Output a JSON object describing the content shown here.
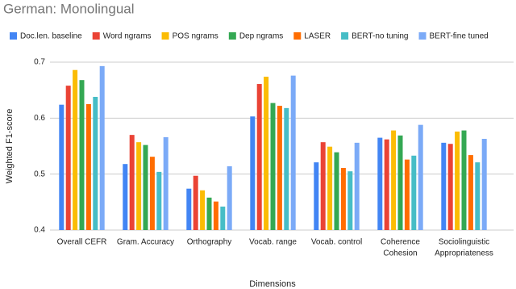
{
  "chart_data": {
    "type": "bar",
    "title": "German: Monolingual",
    "x_label": "Dimensions",
    "y_label": "Weighted F1-score",
    "categories": [
      [
        "Overall CEFR"
      ],
      [
        "Gram. Accuracy"
      ],
      [
        "Orthography"
      ],
      [
        "Vocab. range"
      ],
      [
        "Vocab. control"
      ],
      [
        "Coherence",
        "Cohesion"
      ],
      [
        "Sociolinguistic",
        "Appropriateness"
      ]
    ],
    "series": [
      {
        "name": "Doc.len. baseline",
        "color": "#4285f4",
        "values": [
          0.624,
          0.518,
          0.474,
          0.603,
          0.521,
          0.565,
          0.556
        ]
      },
      {
        "name": "Word ngrams",
        "color": "#ea4335",
        "values": [
          0.658,
          0.57,
          0.497,
          0.661,
          0.557,
          0.562,
          0.554
        ]
      },
      {
        "name": "POS ngrams",
        "color": "#fbbc04",
        "values": [
          0.686,
          0.557,
          0.471,
          0.674,
          0.549,
          0.578,
          0.576
        ]
      },
      {
        "name": "Dep ngrams",
        "color": "#34a853",
        "values": [
          0.668,
          0.552,
          0.458,
          0.627,
          0.539,
          0.569,
          0.578
        ]
      },
      {
        "name": "LASER",
        "color": "#ff6d01",
        "values": [
          0.625,
          0.531,
          0.451,
          0.622,
          0.511,
          0.526,
          0.534
        ]
      },
      {
        "name": "BERT-no tuning",
        "color": "#46bdc6",
        "values": [
          0.638,
          0.504,
          0.442,
          0.618,
          0.505,
          0.533,
          0.521
        ]
      },
      {
        "name": "BERT-fine tuned",
        "color": "#7baaf7",
        "values": [
          0.693,
          0.566,
          0.514,
          0.676,
          0.556,
          0.588,
          0.563
        ]
      }
    ],
    "ylim": [
      0.4,
      0.7
    ],
    "yticks": [
      0.4,
      0.5,
      0.6,
      0.7
    ],
    "grid": true,
    "legend": "top"
  }
}
